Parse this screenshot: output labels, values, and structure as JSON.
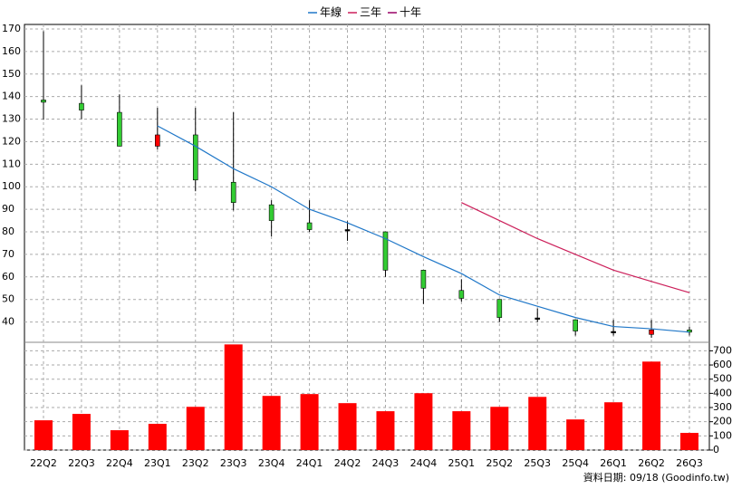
{
  "chart_data": {
    "type": "candlestick",
    "categories": [
      "22Q2",
      "22Q3",
      "22Q4",
      "23Q1",
      "23Q2",
      "23Q3",
      "23Q4",
      "24Q1",
      "24Q2",
      "24Q3",
      "24Q4",
      "25Q1",
      "25Q2",
      "25Q3",
      "25Q4",
      "26Q1",
      "26Q2",
      "26Q3"
    ],
    "open": [
      138.5,
      137,
      133,
      118,
      123,
      102,
      92,
      84,
      81,
      80,
      63,
      54,
      50,
      41.8,
      41,
      35.8,
      34.5,
      36.5
    ],
    "close": [
      137.5,
      134,
      118,
      123,
      103,
      93,
      85,
      81,
      80.5,
      63,
      55,
      50.5,
      42,
      41.4,
      36,
      35.4,
      36.5,
      35.5
    ],
    "high": [
      169,
      145,
      141,
      135,
      135,
      133,
      94,
      94,
      84.7,
      80,
      63,
      59,
      50,
      46,
      41,
      41,
      41,
      38
    ],
    "low": [
      129.7,
      130,
      118,
      116.6,
      98,
      89.5,
      78,
      80,
      76,
      60,
      48,
      49,
      40,
      40,
      34,
      34,
      33,
      34
    ],
    "up_color": "#ff0000",
    "down_color": "#33cc33",
    "ylim": [
      31,
      172
    ],
    "yticks": [
      40,
      50,
      60,
      70,
      80,
      90,
      100,
      110,
      120,
      130,
      140,
      150,
      160,
      170
    ],
    "grid": true,
    "legend": "top",
    "lines": [
      {
        "name": "年線",
        "color": "#1f77c8",
        "values": [
          null,
          null,
          null,
          127,
          118,
          108,
          100,
          90,
          84,
          77,
          69,
          61.5,
          52,
          47,
          42,
          38,
          37,
          35.5
        ]
      },
      {
        "name": "三年",
        "color": "#cc1f5a",
        "values": [
          null,
          null,
          null,
          null,
          null,
          null,
          null,
          null,
          null,
          null,
          null,
          93,
          85,
          77,
          70,
          63,
          58,
          53
        ]
      },
      {
        "name": "十年",
        "color": "#990066",
        "values": [
          null,
          null,
          null,
          null,
          null,
          null,
          null,
          null,
          null,
          null,
          null,
          null,
          null,
          null,
          null,
          null,
          null,
          null
        ]
      }
    ],
    "volume": {
      "color": "#ff0000",
      "values": [
        210,
        255,
        140,
        185,
        305,
        745,
        382,
        395,
        331,
        274,
        401,
        274,
        305,
        375,
        216,
        337,
        624,
        121
      ],
      "ylim": [
        0,
        760
      ],
      "yticks": [
        0,
        100,
        200,
        300,
        400,
        500,
        600,
        700
      ]
    },
    "source": "資料日期: 09/18 (Goodinfo.tw)"
  }
}
